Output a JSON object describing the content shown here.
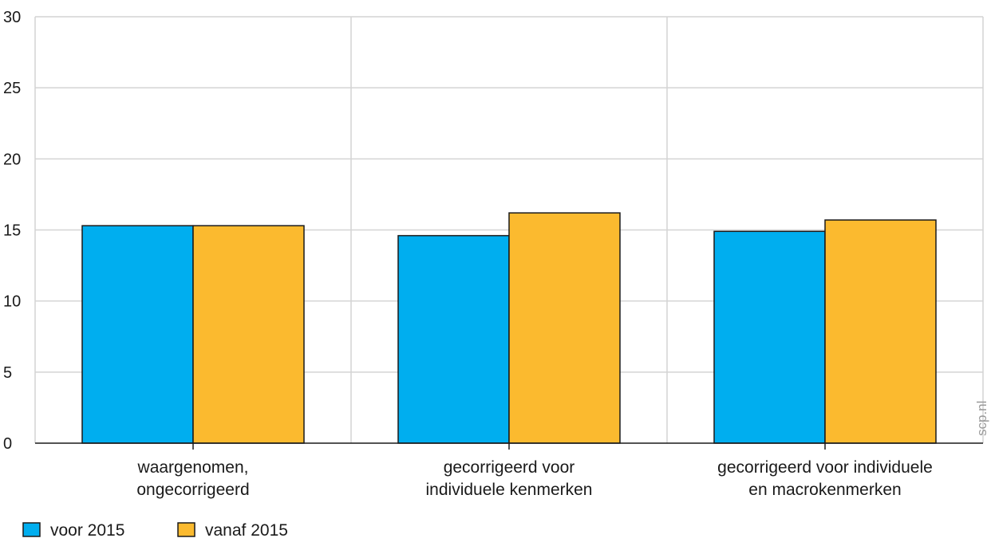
{
  "chart_data": {
    "type": "bar",
    "categories": [
      [
        "waargenomen,",
        "ongecorrigeerd"
      ],
      [
        "gecorrigeerd voor",
        "individuele kenmerken"
      ],
      [
        "gecorrigeerd voor individuele",
        "en macrokenmerken"
      ]
    ],
    "series": [
      {
        "name": "voor 2015",
        "color": "#00aeef",
        "values": [
          15.3,
          14.6,
          14.9
        ]
      },
      {
        "name": "vanaf 2015",
        "color": "#fbba2f",
        "values": [
          15.3,
          16.2,
          15.7
        ]
      }
    ],
    "yticks": [
      0,
      5,
      10,
      15,
      20,
      25,
      30
    ],
    "ylim": [
      0,
      30
    ],
    "title": "",
    "xlabel": "",
    "ylabel": "",
    "grid": true,
    "legend_position": "bottom-left",
    "watermark": "scp.nl"
  }
}
